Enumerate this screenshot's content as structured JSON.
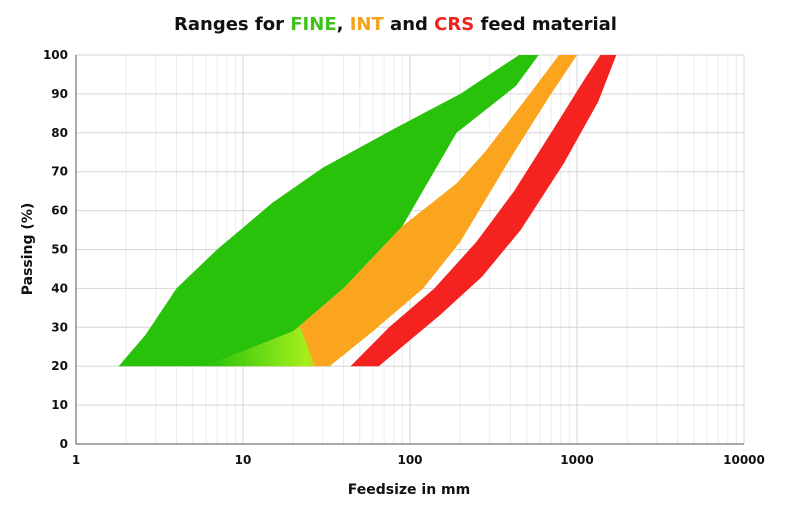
{
  "title_parts": [
    "Ranges for ",
    "FINE",
    ", ",
    "INT",
    " and ",
    "CRS",
    " feed material"
  ],
  "chart_data": {
    "type": "area",
    "title": "Ranges for FINE, INT and CRS feed material",
    "xlabel": "Feedsize in mm",
    "ylabel": "Passing (%)",
    "x_scale": "log",
    "xlim": [
      1,
      10000
    ],
    "ylim": [
      0,
      100
    ],
    "x_ticks": [
      1,
      10,
      100,
      1000,
      10000
    ],
    "y_ticks": [
      0,
      10,
      20,
      30,
      40,
      50,
      60,
      70,
      80,
      90,
      100
    ],
    "grid": true,
    "series": [
      {
        "name": "FINE",
        "color": "#28c20b",
        "polygon": [
          [
            1.8,
            20
          ],
          [
            2.6,
            28
          ],
          [
            4,
            40
          ],
          [
            7,
            50
          ],
          [
            15,
            62
          ],
          [
            30,
            71
          ],
          [
            80,
            81
          ],
          [
            200,
            90
          ],
          [
            450,
            100
          ],
          [
            590,
            100
          ],
          [
            430,
            92
          ],
          [
            190,
            80
          ],
          [
            90,
            56
          ],
          [
            40,
            40
          ],
          [
            20,
            29
          ],
          [
            6,
            20
          ]
        ]
      },
      {
        "name": "INT",
        "color": "#faa51d",
        "polygon": [
          [
            6,
            20
          ],
          [
            20,
            29
          ],
          [
            40,
            40
          ],
          [
            90,
            56
          ],
          [
            190,
            67
          ],
          [
            280,
            75
          ],
          [
            480,
            88
          ],
          [
            780,
            100
          ],
          [
            1000,
            100
          ],
          [
            700,
            90
          ],
          [
            420,
            75
          ],
          [
            200,
            52
          ],
          [
            120,
            40
          ],
          [
            60,
            29
          ],
          [
            33,
            20
          ]
        ]
      },
      {
        "name": "CRS",
        "color": "#f42320",
        "polygon": [
          [
            44,
            20
          ],
          [
            75,
            30
          ],
          [
            140,
            40
          ],
          [
            250,
            52
          ],
          [
            420,
            65
          ],
          [
            700,
            80
          ],
          [
            1080,
            93
          ],
          [
            1380,
            100
          ],
          [
            1720,
            100
          ],
          [
            1340,
            88
          ],
          [
            830,
            72
          ],
          [
            460,
            55
          ],
          [
            270,
            43
          ],
          [
            150,
            33
          ],
          [
            65,
            20
          ]
        ]
      }
    ]
  }
}
